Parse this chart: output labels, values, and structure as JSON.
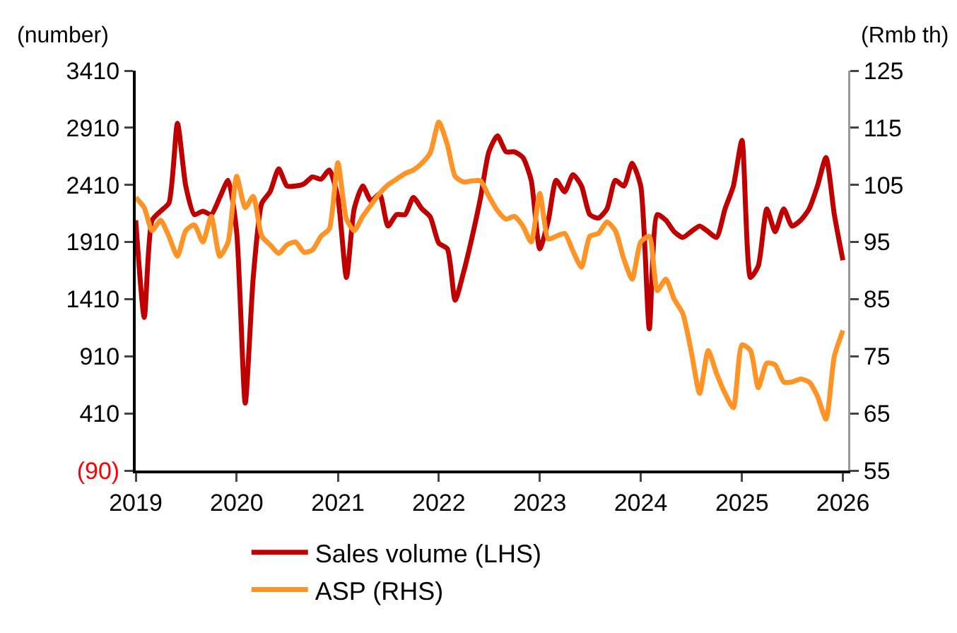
{
  "chart_data": {
    "type": "line",
    "ylabel": "(number)",
    "y2label": "(Rmb th)",
    "x": [
      "2019-01",
      "2019-02",
      "2019-03",
      "2019-04",
      "2019-05",
      "2019-06",
      "2019-07",
      "2019-08",
      "2019-09",
      "2019-10",
      "2019-11",
      "2019-12",
      "2020-01",
      "2020-02",
      "2020-03",
      "2020-04",
      "2020-05",
      "2020-06",
      "2020-07",
      "2020-08",
      "2020-09",
      "2020-10",
      "2020-11",
      "2020-12",
      "2021-01",
      "2021-02",
      "2021-03",
      "2021-04",
      "2021-05",
      "2021-06",
      "2021-07",
      "2021-08",
      "2021-09",
      "2021-10",
      "2021-11",
      "2021-12",
      "2022-01",
      "2022-02",
      "2022-03",
      "2022-04",
      "2022-05",
      "2022-06",
      "2022-07",
      "2022-08",
      "2022-09",
      "2022-10",
      "2022-11",
      "2022-12",
      "2023-01",
      "2023-02",
      "2023-03",
      "2023-04",
      "2023-05",
      "2023-06",
      "2023-07",
      "2023-08",
      "2023-09",
      "2023-10",
      "2023-11",
      "2023-12",
      "2024-01",
      "2024-02",
      "2024-03",
      "2024-04",
      "2024-05",
      "2024-06",
      "2024-07",
      "2024-08",
      "2024-09",
      "2024-10",
      "2024-11",
      "2024-12",
      "2025-01",
      "2025-02",
      "2025-03",
      "2025-04",
      "2025-05",
      "2025-06",
      "2025-07",
      "2025-08",
      "2025-09",
      "2025-10",
      "2025-11",
      "2025-12",
      "2026-01"
    ],
    "series": [
      {
        "name": "Sales volume (LHS)",
        "color": "#c00000",
        "values": [
          2100,
          1250,
          2100,
          2180,
          2250,
          2950,
          2400,
          2150,
          2180,
          2150,
          2300,
          2450,
          2000,
          500,
          1600,
          2250,
          2350,
          2550,
          2400,
          2400,
          2420,
          2480,
          2460,
          2540,
          2300,
          1600,
          2200,
          2400,
          2270,
          2330,
          2050,
          2150,
          2150,
          2300,
          2200,
          2130,
          1900,
          1850,
          1400,
          1650,
          1950,
          2300,
          2700,
          2840,
          2700,
          2700,
          2650,
          2450,
          1850,
          2100,
          2450,
          2350,
          2500,
          2400,
          2150,
          2120,
          2200,
          2450,
          2400,
          2600,
          2400,
          1150,
          2150,
          2100,
          2000,
          1950,
          2000,
          2050,
          2000,
          1950,
          2200,
          2400,
          2800,
          1600,
          1700,
          2200,
          2000,
          2200,
          2050,
          2100,
          2200,
          2400,
          2650,
          2150,
          1750
        ]
      },
      {
        "name": "ASP (RHS)",
        "color": "#ff9326",
        "axis": "y2",
        "values": [
          102.8,
          101,
          97,
          98.8,
          96,
          92.5,
          97,
          98,
          95,
          99.5,
          92.5,
          95,
          106.5,
          101,
          103,
          96,
          94.5,
          93,
          94.5,
          95,
          93.2,
          93.6,
          96,
          97.3,
          108.9,
          99,
          97,
          99.5,
          101.5,
          103.5,
          105,
          106,
          107,
          107.6,
          108.8,
          110.6,
          116,
          112,
          106.5,
          105.5,
          105.7,
          105.7,
          103,
          100.5,
          99,
          99.5,
          97.8,
          95,
          103.5,
          95.5,
          96,
          96.5,
          93.4,
          90.6,
          96,
          96.5,
          98.5,
          97,
          92,
          88.5,
          95,
          96,
          86.5,
          88.5,
          85,
          82.5,
          76,
          68.5,
          76,
          72,
          68.5,
          66,
          77,
          76,
          69.5,
          73.8,
          73.5,
          70.5,
          70.5,
          71,
          70.5,
          68,
          64,
          75,
          79.5
        ]
      }
    ],
    "xlim": [
      "2019-01-01",
      "2026-01-20"
    ],
    "xticks": [
      {
        "value": "2019-01-01",
        "label": "2019"
      },
      {
        "value": "2020-01-01",
        "label": "2020"
      },
      {
        "value": "2021-01-01",
        "label": "2021"
      },
      {
        "value": "2022-01-01",
        "label": "2022"
      },
      {
        "value": "2023-01-01",
        "label": "2023"
      },
      {
        "value": "2024-01-01",
        "label": "2024"
      },
      {
        "value": "2025-01-01",
        "label": "2025"
      },
      {
        "value": "2026-01-01",
        "label": "2026"
      }
    ],
    "ylim": [
      -90,
      3410
    ],
    "yticks": [
      {
        "value": -90,
        "label": "(90)"
      },
      410,
      910,
      1410,
      1910,
      2410,
      2910,
      3410
    ],
    "y2lim": [
      55,
      125
    ],
    "y2ticks": [
      55,
      65,
      75,
      85,
      95,
      105,
      115,
      125
    ],
    "grid": false,
    "legend": "bottom",
    "marker": "none",
    "line_style": "solid"
  }
}
